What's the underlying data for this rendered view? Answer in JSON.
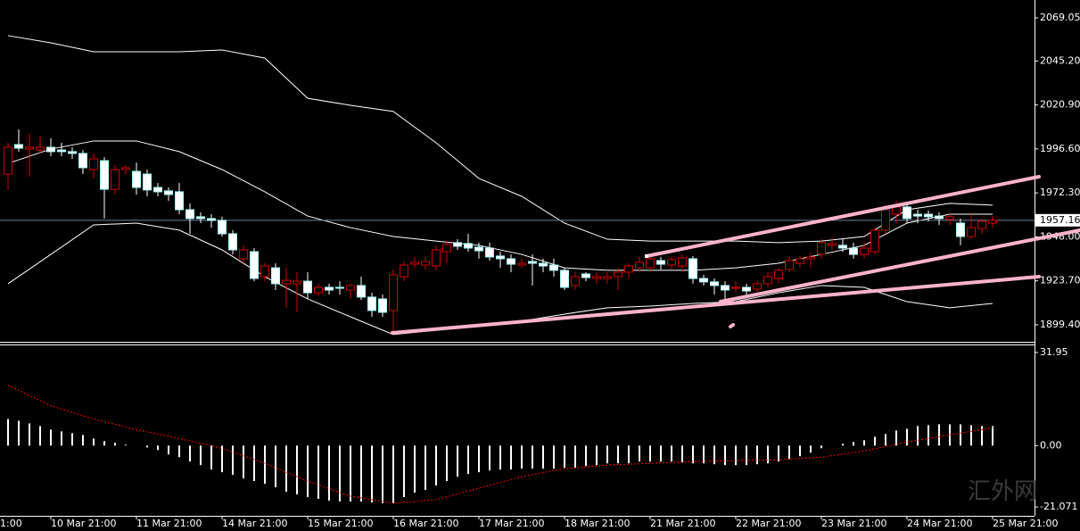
{
  "chart_data": [
    {
      "type": "candlestick",
      "categories": [
        null,
        null,
        null,
        null,
        "10 Mar 21:00",
        null,
        null,
        null,
        null,
        null,
        null,
        null,
        "11 Mar 21:00",
        null,
        null,
        null,
        null,
        null,
        null,
        null,
        "14 Mar 21:00",
        null,
        null,
        null,
        null,
        null,
        null,
        null,
        "15 Mar 21:00",
        null,
        null,
        null,
        null,
        null,
        null,
        null,
        "16 Mar 21:00",
        null,
        null,
        null,
        null,
        null,
        null,
        null,
        "17 Mar 21:00",
        null,
        null,
        null,
        null,
        null,
        null,
        null,
        "18 Mar 21:00",
        null,
        null,
        null,
        null,
        null,
        null,
        null,
        "21 Mar 21:00",
        null,
        null,
        null,
        null,
        null,
        null,
        null,
        "22 Mar 21:00",
        null,
        null,
        null,
        null,
        null,
        null,
        null,
        "23 Mar 21:00",
        null,
        null,
        null,
        null,
        null,
        null,
        null,
        "24 Mar 21:00",
        null,
        null,
        null,
        null,
        null,
        null,
        null,
        "25 Mar 21:00"
      ],
      "edge_label": "1:00",
      "open": [
        1982.7,
        1999.0,
        1996.5,
        1996.0,
        1997.5,
        1996.0,
        1995.1,
        1994.1,
        1985.2,
        1990.1,
        1974.3,
        1985.2,
        1984.2,
        1982.7,
        1975.3,
        1973.4,
        1972.9,
        1963.0,
        1959.1,
        1958.1,
        1957.1,
        1949.7,
        1935.9,
        1939.8,
        1926.0,
        1930.9,
        1922.1,
        1922.1,
        1923.5,
        1917.1,
        1920.1,
        1920.1,
        1918.6,
        1921.1,
        1914.7,
        1913.7,
        1907.3,
        1926.0,
        1932.9,
        1932.4,
        1931.9,
        1939.8,
        1944.8,
        1944.3,
        1942.3,
        1941.8,
        1937.4,
        1935.9,
        1932.4,
        1934.4,
        1933.4,
        1932.4,
        1929.5,
        1921.1,
        1927.5,
        1925.0,
        1925.0,
        1926.0,
        1928.5,
        1930.9,
        1930.9,
        1934.9,
        1932.4,
        1931.9,
        1935.9,
        1925.0,
        1923.1,
        1921.1,
        1919.6,
        1920.1,
        1919.1,
        1922.1,
        1925.0,
        1930.0,
        1933.4,
        1935.9,
        1938.3,
        1943.3,
        1943.3,
        1941.8,
        1938.3,
        1939.8,
        1951.7,
        1960.5,
        1964.5,
        1960.5,
        1960.5,
        1959.5,
        1957.6,
        1955.6,
        1948.2,
        1952.6,
        1955.6
      ],
      "high": [
        2000.0,
        2007.4,
        2004.9,
        2003.9,
        2002.5,
        2000.0,
        1997.5,
        1996.0,
        1994.1,
        1992.1,
        1987.7,
        1987.7,
        1989.1,
        1985.2,
        1977.8,
        1975.3,
        1977.8,
        1966.5,
        1961.5,
        1960.5,
        1959.1,
        1951.7,
        1943.3,
        1941.8,
        1933.4,
        1933.4,
        1930.9,
        1928.5,
        1928.5,
        1922.1,
        1922.1,
        1923.5,
        1922.1,
        1926.0,
        1917.1,
        1916.1,
        1930.0,
        1934.4,
        1936.9,
        1936.9,
        1943.3,
        1945.7,
        1946.7,
        1949.7,
        1944.8,
        1944.8,
        1939.8,
        1938.3,
        1935.9,
        1938.3,
        1935.9,
        1935.9,
        1930.9,
        1928.5,
        1928.5,
        1928.5,
        1928.5,
        1930.9,
        1933.4,
        1936.9,
        1938.3,
        1936.9,
        1936.9,
        1938.3,
        1937.4,
        1927.0,
        1925.0,
        1923.5,
        1923.5,
        1922.1,
        1923.5,
        1928.5,
        1930.9,
        1936.9,
        1937.8,
        1939.3,
        1946.7,
        1947.7,
        1946.7,
        1944.8,
        1944.8,
        1953.1,
        1965.5,
        1967.9,
        1966.5,
        1963.0,
        1962.5,
        1961.5,
        1960.5,
        1958.1,
        1960.5,
        1958.1,
        1959.5
      ],
      "low": [
        1973.9,
        1995.1,
        1981.3,
        1994.1,
        1992.6,
        1992.6,
        1991.1,
        1982.7,
        1980.3,
        1958.1,
        1971.4,
        1982.7,
        1971.4,
        1970.4,
        1970.4,
        1967.9,
        1960.5,
        1949.7,
        1955.6,
        1953.1,
        1948.2,
        1938.3,
        1933.4,
        1923.5,
        1923.5,
        1918.6,
        1908.8,
        1906.3,
        1913.7,
        1915.2,
        1916.1,
        1916.1,
        1913.7,
        1913.2,
        1903.8,
        1903.8,
        1895.4,
        1923.5,
        1930.9,
        1930.0,
        1929.5,
        1933.4,
        1940.8,
        1939.8,
        1935.9,
        1934.9,
        1930.9,
        1928.5,
        1930.9,
        1921.1,
        1928.5,
        1926.0,
        1918.6,
        1918.6,
        1923.5,
        1922.1,
        1922.1,
        1918.6,
        1925.0,
        1928.5,
        1928.5,
        1930.0,
        1930.0,
        1928.5,
        1922.1,
        1921.1,
        1916.1,
        1913.7,
        1917.1,
        1916.1,
        1917.1,
        1920.1,
        1922.1,
        1928.5,
        1930.9,
        1930.9,
        1935.9,
        1940.8,
        1939.8,
        1935.9,
        1935.9,
        1938.3,
        1949.7,
        1955.6,
        1955.6,
        1955.6,
        1956.6,
        1954.6,
        1954.6,
        1943.3,
        1946.7,
        1949.7,
        1953.1
      ],
      "close": [
        1997.5,
        1997.0,
        1997.5,
        1997.5,
        1995.1,
        1995.1,
        1994.1,
        1986.2,
        1991.1,
        1974.3,
        1985.2,
        1986.2,
        1975.3,
        1973.9,
        1972.9,
        1971.4,
        1963.0,
        1958.1,
        1958.1,
        1957.1,
        1949.7,
        1940.8,
        1940.8,
        1925.0,
        1931.9,
        1922.1,
        1924.0,
        1923.5,
        1917.1,
        1920.1,
        1918.6,
        1919.6,
        1921.1,
        1914.7,
        1907.3,
        1906.3,
        1927.0,
        1932.4,
        1933.9,
        1934.4,
        1940.8,
        1943.8,
        1942.8,
        1941.8,
        1940.3,
        1936.9,
        1935.9,
        1932.9,
        1933.4,
        1933.4,
        1931.9,
        1929.5,
        1920.1,
        1926.0,
        1925.5,
        1926.0,
        1926.0,
        1928.5,
        1931.9,
        1933.9,
        1935.9,
        1932.9,
        1935.4,
        1936.4,
        1925.0,
        1923.1,
        1921.1,
        1918.6,
        1920.1,
        1918.1,
        1922.1,
        1926.0,
        1929.5,
        1934.9,
        1935.9,
        1936.9,
        1944.8,
        1944.3,
        1941.8,
        1938.3,
        1941.8,
        1951.7,
        1963.0,
        1964.5,
        1958.1,
        1959.5,
        1959.1,
        1958.1,
        1959.1,
        1948.2,
        1953.1,
        1956.6,
        1957.1
      ],
      "up_color": "#d00000",
      "down_color": "#ffffff",
      "band_x": [
        0,
        4,
        8,
        12,
        16,
        20,
        24,
        28,
        32,
        36,
        40,
        44,
        48,
        52,
        56,
        60,
        64,
        68,
        72,
        76,
        80,
        84,
        88,
        92
      ],
      "bands": [
        {
          "color": "#ffffff",
          "values": [
            2059.2,
            2055.2,
            2050.3,
            2050.3,
            2050.3,
            2051.3,
            2046.8,
            2024.6,
            2020.7,
            2017.3,
            2000.0,
            1980.3,
            1970.4,
            1955.6,
            1946.7,
            1945.7,
            1945.7,
            1945.7,
            1944.8,
            1945.7,
            1948.2,
            1963.0,
            1966.5,
            1965.5
          ]
        },
        {
          "color": "#ffffff",
          "values": [
            1988.6,
            1996.5,
            2001.0,
            2001.0,
            1995.1,
            1985.2,
            1972.9,
            1959.5,
            1953.1,
            1948.2,
            1945.7,
            1943.3,
            1938.3,
            1930.9,
            1929.5,
            1929.5,
            1929.5,
            1930.9,
            1933.4,
            1938.3,
            1943.3,
            1955.6,
            1960.5,
            1960.5
          ]
        },
        {
          "color": "#ffffff",
          "values": [
            1922.1,
            1938.3,
            1954.6,
            1955.6,
            1951.7,
            1940.8,
            1926.0,
            1913.7,
            1903.8,
            1894.0,
            1896.4,
            1898.9,
            1901.4,
            1905.3,
            1908.8,
            1909.7,
            1911.2,
            1912.2,
            1917.1,
            1921.1,
            1920.1,
            1912.2,
            1908.8,
            1911.2
          ]
        }
      ],
      "last_price": 1957.16,
      "ylim": [
        1890.0,
        2078.9
      ],
      "yticks": [
        2069.05,
        {
          "value": 2045.2,
          "label": "2045.20"
        },
        {
          "value": 2020.9,
          "label": "2020.90"
        },
        {
          "value": 1996.6,
          "label": "1996.60"
        },
        {
          "value": 1972.3,
          "label": "1972.30"
        },
        {
          "value": 1948,
          "label": "1948.00"
        },
        {
          "value": 1923.7,
          "label": "1923.70"
        },
        {
          "value": 1899.4,
          "label": "1899.40"
        }
      ],
      "watermark": "汇外网"
    },
    {
      "type": "bar",
      "color": "#ffffff",
      "values": [
        9.13,
        8.52,
        7.61,
        6.7,
        5.48,
        4.87,
        4.26,
        3.65,
        2.43,
        1.52,
        0.91,
        0.3,
        0,
        -0.61,
        -1.52,
        -3.04,
        -3.96,
        -5.48,
        -6.7,
        -8.22,
        -9.13,
        -10.04,
        -11.26,
        -12.17,
        -13.09,
        -14.3,
        -15.82,
        -16.74,
        -17.65,
        -18.26,
        -18.87,
        -19.17,
        -19.17,
        -19.17,
        -19.48,
        -19.78,
        -19.78,
        -17.65,
        -16.13,
        -15.22,
        -13.69,
        -12.17,
        -10.65,
        -9.74,
        -9.13,
        -8.52,
        -8.22,
        -8.22,
        -7.91,
        -7.91,
        -7.91,
        -7.91,
        -7.61,
        -7.61,
        -7.0,
        -6.7,
        -6.09,
        -6.09,
        -6.09,
        -5.48,
        -5.48,
        -5.48,
        -5.48,
        -5.78,
        -6.09,
        -6.09,
        -6.39,
        -6.7,
        -6.7,
        -6.7,
        -6.39,
        -6.09,
        -5.48,
        -4.56,
        -3.65,
        -2.43,
        -0.91,
        0,
        0.61,
        1.22,
        1.83,
        3.04,
        3.96,
        5.17,
        5.78,
        6.7,
        7.0,
        7.3,
        7.3,
        7.3,
        7.0,
        6.7,
        6.7
      ],
      "signal": {
        "color": "#ff0000",
        "values": [
          20.69,
          13.69,
          9.13,
          5.48,
          2.43,
          -0.91,
          -6.09,
          -12.17,
          -17.35,
          -19.78,
          -18.56,
          -14.61,
          -10.65,
          -7.91,
          -6.7,
          -6.09,
          -5.48,
          -5.17,
          -4.87,
          -3.96,
          -1.83,
          1.22,
          3.65,
          6.09
        ]
      },
      "ylim": [
        -24.1,
        34.7
      ],
      "yticks": [
        31.95,
        {
          "value": 0,
          "label": "0.00"
        },
        -21.071
      ]
    }
  ]
}
